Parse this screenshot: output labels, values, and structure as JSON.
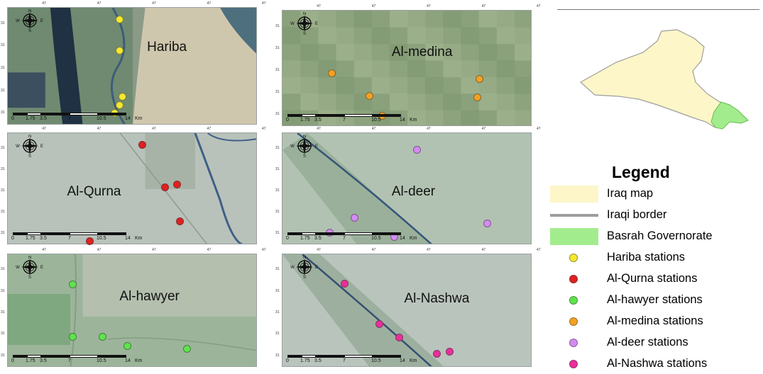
{
  "colors": {
    "iraq_fill": "#fdf6c8",
    "iraq_border": "#9e9e9e",
    "basrah_fill": "#a3ec8e",
    "hariba": "#f5e92f",
    "al_qurna": "#e02020",
    "al_hawyer": "#5ee44b",
    "al_medina": "#f2a222",
    "al_deer": "#d48af2",
    "al_nashwa": "#ea2e9a"
  },
  "compass": {
    "north": "N",
    "south": "S",
    "east": "E",
    "west": "W"
  },
  "scale": {
    "ticks": [
      "0",
      "1.75",
      "3.5",
      "7",
      "10.5",
      "14"
    ],
    "unit": "Km"
  },
  "top_ticks": [
    "47",
    "47",
    "47",
    "47",
    "47"
  ],
  "side_ticks": [
    "31",
    "31",
    "31",
    "31",
    "31"
  ],
  "panels": [
    {
      "id": "hariba",
      "title": "Hariba",
      "color_key": "hariba",
      "stations": [
        [
          0.45,
          0.1
        ],
        [
          0.45,
          0.37
        ],
        [
          0.46,
          0.76
        ],
        [
          0.45,
          0.83
        ],
        [
          0.43,
          0.9
        ]
      ]
    },
    {
      "id": "al-medina",
      "title": "Al-medina",
      "color_key": "al_medina",
      "stations": [
        [
          0.2,
          0.54
        ],
        [
          0.35,
          0.74
        ],
        [
          0.4,
          0.91
        ],
        [
          0.79,
          0.59
        ],
        [
          0.78,
          0.75
        ]
      ]
    },
    {
      "id": "al-qurna",
      "title": "Al-Qurna",
      "color_key": "al_qurna",
      "stations": [
        [
          0.54,
          0.11
        ],
        [
          0.63,
          0.49
        ],
        [
          0.68,
          0.46
        ],
        [
          0.69,
          0.79
        ],
        [
          0.33,
          0.97
        ]
      ]
    },
    {
      "id": "al-deer",
      "title": "Al-deer",
      "color_key": "al_deer",
      "stations": [
        [
          0.54,
          0.15
        ],
        [
          0.29,
          0.76
        ],
        [
          0.19,
          0.89
        ],
        [
          0.45,
          0.93
        ],
        [
          0.82,
          0.81
        ]
      ]
    },
    {
      "id": "al-hawyer",
      "title": "Al-hawyer",
      "color_key": "al_hawyer",
      "stations": [
        [
          0.26,
          0.27
        ],
        [
          0.26,
          0.73
        ],
        [
          0.38,
          0.73
        ],
        [
          0.48,
          0.81
        ],
        [
          0.72,
          0.84
        ]
      ]
    },
    {
      "id": "al-nashwa",
      "title": "Al-Nashwa",
      "color_key": "al_nashwa",
      "stations": [
        [
          0.25,
          0.26
        ],
        [
          0.39,
          0.62
        ],
        [
          0.47,
          0.74
        ],
        [
          0.62,
          0.88
        ],
        [
          0.67,
          0.86
        ]
      ]
    }
  ],
  "legend": {
    "title": "Legend",
    "items": [
      {
        "label": "Iraq map",
        "kind": "fill",
        "color_key": "iraq_fill"
      },
      {
        "label": "Iraqi border",
        "kind": "line",
        "color_key": "iraq_border"
      },
      {
        "label": "Basrah Governorate",
        "kind": "fill",
        "color_key": "basrah_fill"
      },
      {
        "label": "Hariba stations",
        "kind": "dot",
        "color_key": "hariba"
      },
      {
        "label": "Al-Qurna stations",
        "kind": "dot",
        "color_key": "al_qurna"
      },
      {
        "label": "Al-hawyer stations",
        "kind": "dot",
        "color_key": "al_hawyer"
      },
      {
        "label": "Al-medina stations",
        "kind": "dot",
        "color_key": "al_medina"
      },
      {
        "label": "Al-deer stations",
        "kind": "dot",
        "color_key": "al_deer"
      },
      {
        "label": "Al-Nashwa stations",
        "kind": "dot",
        "color_key": "al_nashwa"
      }
    ]
  }
}
